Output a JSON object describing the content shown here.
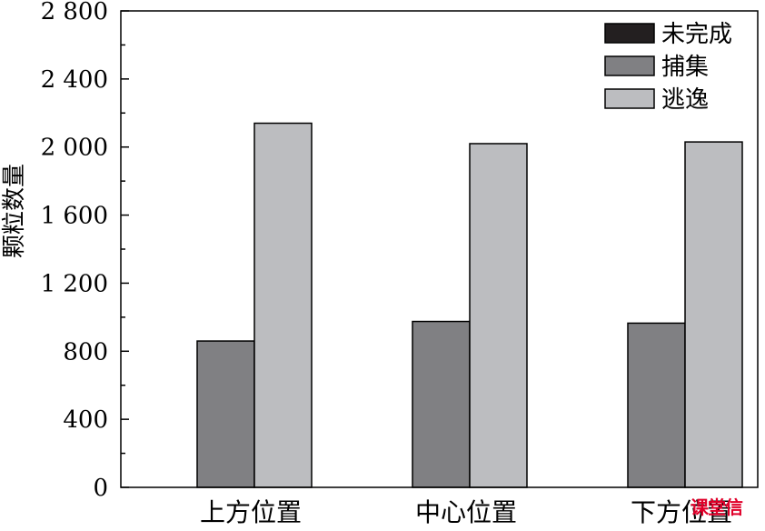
{
  "chart_data": {
    "type": "bar",
    "title": "",
    "xlabel": "",
    "ylabel": "颗粒数量",
    "categories": [
      "上方位置",
      "中心位置",
      "下方位置"
    ],
    "series": [
      {
        "name": "未完成",
        "values": [
          0,
          0,
          0
        ],
        "color": "#231f20"
      },
      {
        "name": "捕集",
        "values": [
          860,
          975,
          965
        ],
        "color": "#808083"
      },
      {
        "name": "逃逸",
        "values": [
          2140,
          2020,
          2030
        ],
        "color": "#bcbdc0"
      }
    ],
    "ylim": [
      0,
      2800
    ],
    "yticks": [
      0,
      400,
      800,
      1200,
      1600,
      2000,
      2400,
      2800
    ],
    "yticklabels": [
      "0",
      "400",
      "800",
      "1 200",
      "1 600",
      "2 000",
      "2 400",
      "2 800"
    ],
    "grid": false,
    "legend_position": "top-right"
  },
  "watermark": {
    "text": "课堂信"
  }
}
